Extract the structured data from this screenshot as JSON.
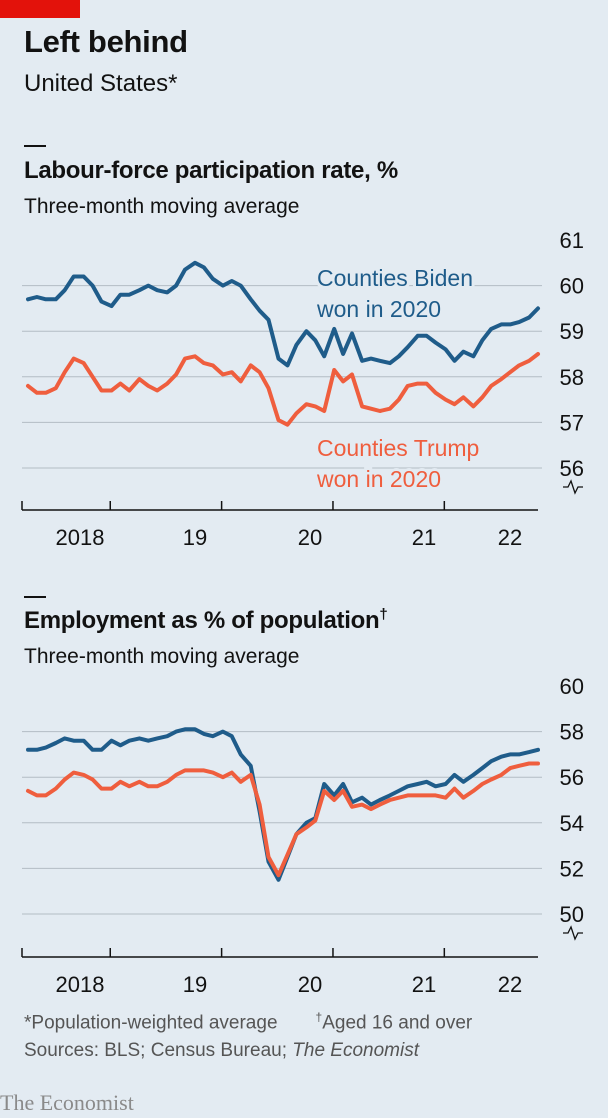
{
  "header": {
    "title": "Left behind",
    "subtitle": "United States*"
  },
  "colors": {
    "biden": "#1f5c8a",
    "trump": "#ef5e3e",
    "accent": "#e3120b",
    "grid": "#121212"
  },
  "chart_data": [
    {
      "type": "line",
      "title": "Labour-force participation rate, %",
      "subtitle": "Three-month moving average",
      "ylim": [
        56,
        61
      ],
      "yticks": [
        "61",
        "60",
        "59",
        "58",
        "57",
        "56"
      ],
      "axis_break": true,
      "xlim": [
        2017.92,
        2022.5
      ],
      "xtick_labels": [
        "2018",
        "19",
        "20",
        "21",
        "22"
      ],
      "grid": true,
      "series": [
        {
          "name": "Counties Biden won in 2020",
          "label_lines": [
            "Counties Biden",
            "won in 2020"
          ],
          "color": "#1f5c8a",
          "x": [
            2017.92,
            2018.0,
            2018.08,
            2018.17,
            2018.25,
            2018.33,
            2018.42,
            2018.5,
            2018.58,
            2018.67,
            2018.75,
            2018.83,
            2018.92,
            2019.0,
            2019.08,
            2019.17,
            2019.25,
            2019.33,
            2019.42,
            2019.5,
            2019.58,
            2019.67,
            2019.75,
            2019.83,
            2019.92,
            2020.0,
            2020.08,
            2020.17,
            2020.25,
            2020.33,
            2020.42,
            2020.5,
            2020.58,
            2020.67,
            2020.75,
            2020.83,
            2020.92,
            2021.0,
            2021.08,
            2021.17,
            2021.25,
            2021.33,
            2021.42,
            2021.5,
            2021.58,
            2021.67,
            2021.75,
            2021.83,
            2021.92,
            2022.0,
            2022.08,
            2022.17,
            2022.25,
            2022.33,
            2022.42,
            2022.5
          ],
          "values": [
            59.7,
            59.75,
            59.7,
            59.7,
            59.9,
            60.2,
            60.2,
            60.0,
            59.65,
            59.55,
            59.8,
            59.8,
            59.9,
            60.0,
            59.9,
            59.85,
            60.0,
            60.35,
            60.5,
            60.4,
            60.15,
            60.0,
            60.1,
            60.0,
            59.7,
            59.45,
            59.25,
            58.4,
            58.25,
            58.7,
            59.0,
            58.8,
            58.45,
            59.05,
            58.5,
            58.95,
            58.35,
            58.4,
            58.35,
            58.3,
            58.45,
            58.65,
            58.9,
            58.9,
            58.75,
            58.6,
            58.35,
            58.55,
            58.45,
            58.8,
            59.05,
            59.15,
            59.15,
            59.2,
            59.3,
            59.5
          ]
        },
        {
          "name": "Counties Trump won in 2020",
          "label_lines": [
            "Counties Trump",
            "won in 2020"
          ],
          "color": "#ef5e3e",
          "x": [
            2017.92,
            2018.0,
            2018.08,
            2018.17,
            2018.25,
            2018.33,
            2018.42,
            2018.5,
            2018.58,
            2018.67,
            2018.75,
            2018.83,
            2018.92,
            2019.0,
            2019.08,
            2019.17,
            2019.25,
            2019.33,
            2019.42,
            2019.5,
            2019.58,
            2019.67,
            2019.75,
            2019.83,
            2019.92,
            2020.0,
            2020.08,
            2020.17,
            2020.25,
            2020.33,
            2020.42,
            2020.5,
            2020.58,
            2020.67,
            2020.75,
            2020.83,
            2020.92,
            2021.0,
            2021.08,
            2021.17,
            2021.25,
            2021.33,
            2021.42,
            2021.5,
            2021.58,
            2021.67,
            2021.75,
            2021.83,
            2021.92,
            2022.0,
            2022.08,
            2022.17,
            2022.25,
            2022.33,
            2022.42,
            2022.5
          ],
          "values": [
            57.8,
            57.65,
            57.65,
            57.75,
            58.1,
            58.4,
            58.3,
            58.0,
            57.7,
            57.7,
            57.85,
            57.7,
            57.95,
            57.8,
            57.7,
            57.85,
            58.05,
            58.4,
            58.45,
            58.3,
            58.25,
            58.05,
            58.1,
            57.9,
            58.25,
            58.1,
            57.75,
            57.05,
            56.95,
            57.2,
            57.4,
            57.35,
            57.25,
            58.15,
            57.9,
            58.05,
            57.35,
            57.3,
            57.25,
            57.3,
            57.5,
            57.8,
            57.85,
            57.85,
            57.65,
            57.5,
            57.4,
            57.55,
            57.35,
            57.55,
            57.8,
            57.95,
            58.1,
            58.25,
            58.35,
            58.5
          ]
        }
      ]
    },
    {
      "type": "line",
      "title": "Employment as % of population",
      "title_mark": "†",
      "subtitle": "Three-month moving average",
      "ylim": [
        50,
        60
      ],
      "yticks": [
        "60",
        "58",
        "56",
        "54",
        "52",
        "50"
      ],
      "axis_break": true,
      "xlim": [
        2017.92,
        2022.5
      ],
      "xtick_labels": [
        "2018",
        "19",
        "20",
        "21",
        "22"
      ],
      "grid": true,
      "series": [
        {
          "color": "#1f5c8a",
          "x": [
            2017.92,
            2018.0,
            2018.08,
            2018.17,
            2018.25,
            2018.33,
            2018.42,
            2018.5,
            2018.58,
            2018.67,
            2018.75,
            2018.83,
            2018.92,
            2019.0,
            2019.08,
            2019.17,
            2019.25,
            2019.33,
            2019.42,
            2019.5,
            2019.58,
            2019.67,
            2019.75,
            2019.83,
            2019.92,
            2020.0,
            2020.08,
            2020.17,
            2020.25,
            2020.33,
            2020.42,
            2020.5,
            2020.58,
            2020.67,
            2020.75,
            2020.83,
            2020.92,
            2021.0,
            2021.08,
            2021.17,
            2021.25,
            2021.33,
            2021.42,
            2021.5,
            2021.58,
            2021.67,
            2021.75,
            2021.83,
            2021.92,
            2022.0,
            2022.08,
            2022.17,
            2022.25,
            2022.33,
            2022.42,
            2022.5
          ],
          "values": [
            57.2,
            57.2,
            57.3,
            57.5,
            57.7,
            57.6,
            57.6,
            57.2,
            57.2,
            57.6,
            57.4,
            57.6,
            57.7,
            57.6,
            57.7,
            57.8,
            58.0,
            58.1,
            58.1,
            57.9,
            57.8,
            58.0,
            57.8,
            57.0,
            56.5,
            54.5,
            52.3,
            51.5,
            52.5,
            53.5,
            54.0,
            54.2,
            55.7,
            55.2,
            55.7,
            54.9,
            55.1,
            54.8,
            55.0,
            55.2,
            55.4,
            55.6,
            55.7,
            55.8,
            55.6,
            55.7,
            56.1,
            55.8,
            56.1,
            56.4,
            56.7,
            56.9,
            57.0,
            57.0,
            57.1,
            57.2
          ]
        },
        {
          "color": "#ef5e3e",
          "x": [
            2017.92,
            2018.0,
            2018.08,
            2018.17,
            2018.25,
            2018.33,
            2018.42,
            2018.5,
            2018.58,
            2018.67,
            2018.75,
            2018.83,
            2018.92,
            2019.0,
            2019.08,
            2019.17,
            2019.25,
            2019.33,
            2019.42,
            2019.5,
            2019.58,
            2019.67,
            2019.75,
            2019.83,
            2019.92,
            2020.0,
            2020.08,
            2020.17,
            2020.25,
            2020.33,
            2020.42,
            2020.5,
            2020.58,
            2020.67,
            2020.75,
            2020.83,
            2020.92,
            2021.0,
            2021.08,
            2021.17,
            2021.25,
            2021.33,
            2021.42,
            2021.5,
            2021.58,
            2021.67,
            2021.75,
            2021.83,
            2021.92,
            2022.0,
            2022.08,
            2022.17,
            2022.25,
            2022.33,
            2022.42,
            2022.5
          ],
          "values": [
            55.4,
            55.2,
            55.2,
            55.5,
            55.9,
            56.2,
            56.1,
            55.9,
            55.5,
            55.5,
            55.8,
            55.6,
            55.8,
            55.6,
            55.6,
            55.8,
            56.1,
            56.3,
            56.3,
            56.3,
            56.2,
            56.0,
            56.2,
            55.8,
            56.1,
            54.8,
            52.5,
            51.7,
            52.6,
            53.5,
            53.8,
            54.1,
            55.4,
            55.0,
            55.4,
            54.7,
            54.8,
            54.6,
            54.8,
            55.0,
            55.1,
            55.2,
            55.2,
            55.2,
            55.2,
            55.1,
            55.5,
            55.1,
            55.4,
            55.7,
            55.9,
            56.1,
            56.4,
            56.5,
            56.6,
            56.6
          ]
        }
      ]
    }
  ],
  "footnotes": {
    "note_a": "*Population-weighted average",
    "note_b_mark": "†",
    "note_b": "Aged 16 and over",
    "sources_prefix": "Sources: BLS; Census Bureau; ",
    "sources_italic": "The Economist"
  },
  "brand": "The Economist"
}
